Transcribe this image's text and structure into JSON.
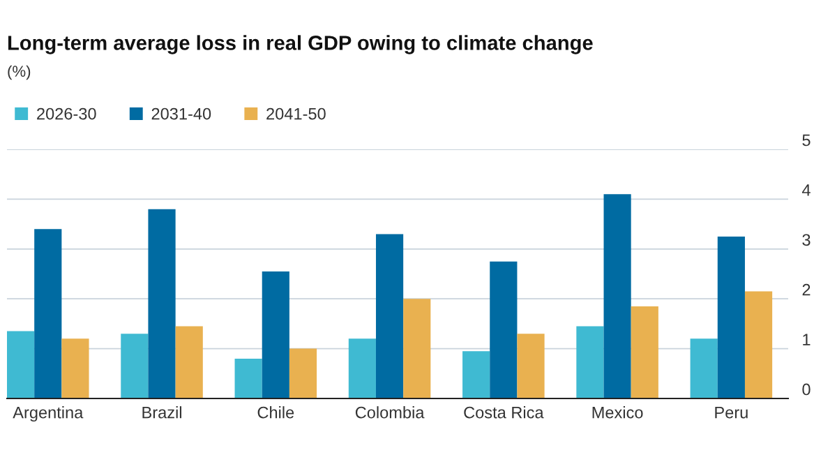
{
  "chart_data": {
    "type": "bar",
    "title": "Long-term average loss in real GDP owing to climate change",
    "subtitle": "(%)",
    "categories": [
      "Argentina",
      "Brazil",
      "Chile",
      "Colombia",
      "Costa Rica",
      "Mexico",
      "Peru"
    ],
    "series": [
      {
        "name": "2026-30",
        "color": "#3fbad2",
        "values": [
          1.35,
          1.3,
          0.8,
          1.2,
          0.95,
          1.45,
          1.2
        ]
      },
      {
        "name": "2031-40",
        "color": "#006ba2",
        "values": [
          3.4,
          3.8,
          2.55,
          3.3,
          2.75,
          4.1,
          3.25
        ]
      },
      {
        "name": "2041-50",
        "color": "#e9b150",
        "values": [
          1.2,
          1.45,
          1.0,
          2.0,
          1.3,
          1.85,
          2.15
        ]
      }
    ],
    "ylim": [
      0,
      5
    ],
    "yticks": [
      0,
      1,
      2,
      3,
      4,
      5
    ],
    "grid": "y",
    "legend": "top left"
  }
}
